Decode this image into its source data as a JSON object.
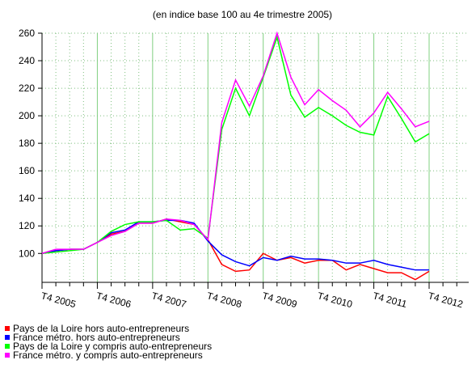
{
  "chart_data": {
    "type": "line",
    "title": "(en indice base 100 au 4e trimestre 2005)",
    "categories": [
      "T4 2005",
      null,
      null,
      null,
      "T4 2006",
      null,
      null,
      null,
      "T4 2007",
      null,
      null,
      null,
      "T4 2008",
      null,
      null,
      null,
      "T4 2009",
      null,
      null,
      null,
      "T4 2010",
      null,
      null,
      null,
      "T4 2011",
      null,
      null,
      null,
      "T4 2012"
    ],
    "series": [
      {
        "name": "Pays de la Loire hors auto-entrepreneurs",
        "color": "#ff0000",
        "values": [
          100,
          102,
          103,
          103,
          108,
          114,
          116,
          122,
          122,
          125,
          123,
          121,
          110,
          92,
          87,
          88,
          100,
          95,
          97,
          93,
          95,
          95,
          88,
          92,
          89,
          86,
          86,
          81,
          87
        ]
      },
      {
        "name": "France métro. hors auto-entrepreneurs",
        "color": "#0000ff",
        "values": [
          100,
          102,
          103,
          103,
          108,
          115,
          117,
          123,
          123,
          124,
          124,
          122,
          109,
          99,
          94,
          91,
          97,
          95,
          98,
          96,
          96,
          95,
          93,
          93,
          95,
          92,
          90,
          88,
          88
        ]
      },
      {
        "name": "Pays de la Loire y compris auto-entrepreneurs",
        "color": "#00ff00",
        "values": [
          100,
          101,
          102,
          103,
          108,
          116,
          121,
          123,
          123,
          124,
          117,
          118,
          111,
          190,
          220,
          200,
          228,
          257,
          215,
          199,
          206,
          200,
          193,
          188,
          186,
          214,
          198,
          181,
          187
        ]
      },
      {
        "name": "France métro. y compris auto-entrepreneurs",
        "color": "#ff00ff",
        "values": [
          100,
          103,
          103,
          103,
          108,
          113,
          116,
          122,
          122,
          125,
          124,
          121,
          110,
          195,
          226,
          207,
          229,
          260,
          228,
          208,
          219,
          211,
          204,
          192,
          202,
          217,
          205,
          192,
          196
        ]
      }
    ],
    "ylim": [
      79,
      260
    ],
    "yticks": [
      100,
      120,
      140,
      160,
      180,
      200,
      220,
      240,
      260
    ],
    "grid": true
  }
}
